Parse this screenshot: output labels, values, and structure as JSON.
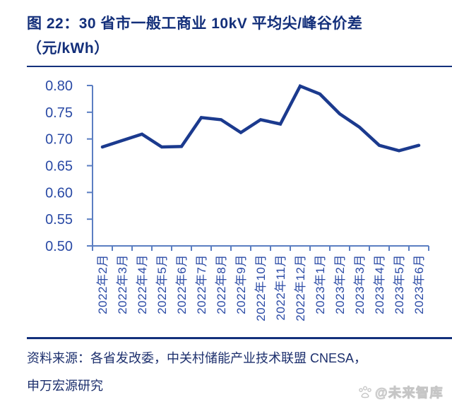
{
  "title": {
    "line1": "图 22：30 省市一般工商业 10kV 平均尖/峰谷价差",
    "line2": "（元/kWh）"
  },
  "chart_data": {
    "type": "line",
    "title": "30省市一般工商业10kV平均尖/峰谷价差",
    "xlabel": "",
    "ylabel": "元/kWh",
    "categories": [
      "2022年2月",
      "2022年3月",
      "2022年4月",
      "2022年5月",
      "2022年6月",
      "2022年7月",
      "2022年8月",
      "2022年9月",
      "2022年10月",
      "2022年11月",
      "2022年12月",
      "2023年1月",
      "2023年2月",
      "2023年3月",
      "2023年4月",
      "2023年5月",
      "2023年6月"
    ],
    "series": [
      {
        "name": "平均尖/峰谷价差",
        "values": [
          0.685,
          0.697,
          0.709,
          0.685,
          0.686,
          0.74,
          0.736,
          0.712,
          0.736,
          0.728,
          0.799,
          0.784,
          0.747,
          0.722,
          0.688,
          0.678,
          0.688
        ]
      }
    ],
    "ylim": [
      0.5,
      0.8
    ],
    "ytick_step": 0.05,
    "yticks": [
      "0.80",
      "0.75",
      "0.70",
      "0.65",
      "0.60",
      "0.55",
      "0.50"
    ],
    "grid": false,
    "legend": false
  },
  "source": {
    "line1": "资料来源：各省发改委，中关村储能产业技术联盟 CNESA，",
    "line2": "申万宏源研究"
  },
  "watermark": {
    "icon": "paw-icon",
    "text": "@未来智库"
  },
  "colors": {
    "background": "#FFFFFF",
    "title": "#132F7A",
    "rule": "#13307C",
    "axis_line": "#5B7EC2",
    "tick_label": "#2A4AA5",
    "data_line": "#1B3A8E",
    "source_text": "#1C2F6D",
    "watermark": "#C6C6C6"
  }
}
